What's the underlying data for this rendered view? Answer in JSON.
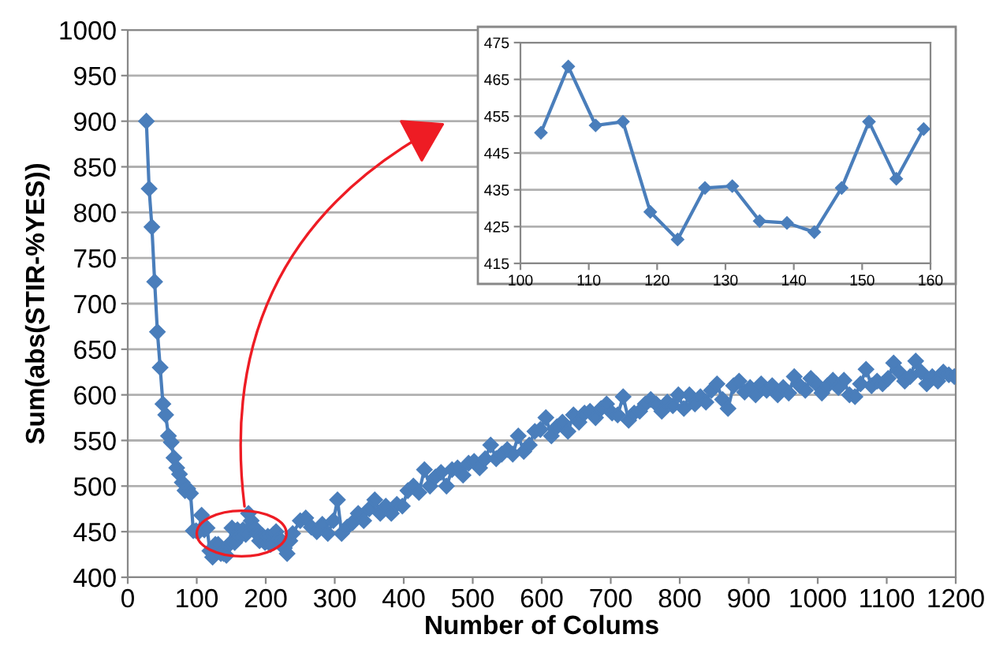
{
  "chart_data": [
    {
      "type": "line",
      "xlabel": "Number of Colums",
      "ylabel": "Sum(abs(STIR-%YES))",
      "xlim": [
        0,
        1200
      ],
      "ylim": [
        400,
        1000
      ],
      "xticks": [
        0,
        100,
        200,
        300,
        400,
        500,
        600,
        700,
        800,
        900,
        1000,
        1100,
        1200
      ],
      "yticks": [
        400,
        450,
        500,
        550,
        600,
        650,
        700,
        750,
        800,
        850,
        900,
        950,
        1000
      ],
      "grid": "y",
      "marker": "diamond",
      "line_style": "solid",
      "legend": false,
      "series": [
        {
          "color": "#4a7ebb",
          "x": [
            27,
            31,
            35,
            39,
            43,
            47,
            51,
            55,
            59,
            63,
            67,
            71,
            75,
            79,
            83,
            87,
            91,
            95,
            99,
            103,
            107,
            111,
            115,
            119,
            123,
            127,
            131,
            135,
            139,
            143,
            147,
            151,
            155,
            159,
            163,
            167,
            171,
            175,
            179,
            183,
            187,
            191,
            195,
            199,
            203,
            207,
            211,
            215,
            219,
            223,
            227,
            231,
            235,
            239,
            250,
            258,
            266,
            274,
            282,
            290,
            298,
            304,
            310,
            318,
            326,
            334,
            342,
            350,
            358,
            366,
            374,
            382,
            390,
            398,
            406,
            414,
            422,
            430,
            438,
            446,
            454,
            462,
            470,
            478,
            486,
            494,
            502,
            510,
            518,
            526,
            534,
            542,
            550,
            558,
            566,
            574,
            582,
            590,
            598,
            606,
            614,
            622,
            630,
            638,
            646,
            654,
            662,
            670,
            678,
            686,
            694,
            702,
            710,
            718,
            726,
            734,
            742,
            750,
            758,
            766,
            774,
            782,
            790,
            798,
            806,
            814,
            822,
            830,
            838,
            846,
            854,
            862,
            870,
            878,
            886,
            894,
            902,
            910,
            918,
            926,
            934,
            942,
            950,
            958,
            966,
            974,
            982,
            990,
            998,
            1006,
            1014,
            1022,
            1030,
            1038,
            1046,
            1054,
            1062,
            1070,
            1078,
            1086,
            1094,
            1102,
            1110,
            1118,
            1126,
            1134,
            1142,
            1150,
            1158,
            1166,
            1174,
            1182,
            1190,
            1198
          ],
          "values": [
            900,
            826,
            784,
            724,
            669,
            630,
            590,
            578,
            555,
            548,
            531,
            520,
            513,
            504,
            495,
            497,
            492,
            451,
            451,
            450,
            468,
            452,
            454,
            429,
            422,
            436,
            436,
            426,
            426,
            424,
            436,
            454,
            438,
            452,
            445,
            452,
            447,
            470,
            462,
            455,
            448,
            440,
            446,
            438,
            445,
            436,
            447,
            450,
            442,
            440,
            432,
            426,
            440,
            448,
            462,
            465,
            455,
            450,
            458,
            448,
            462,
            485,
            448,
            455,
            460,
            470,
            462,
            475,
            485,
            470,
            478,
            470,
            480,
            478,
            495,
            500,
            493,
            518,
            500,
            510,
            515,
            500,
            518,
            520,
            512,
            525,
            527,
            520,
            530,
            545,
            530,
            535,
            540,
            535,
            555,
            538,
            545,
            560,
            562,
            575,
            555,
            565,
            570,
            560,
            578,
            570,
            580,
            582,
            575,
            585,
            590,
            580,
            578,
            598,
            572,
            580,
            582,
            590,
            595,
            590,
            582,
            592,
            588,
            600,
            585,
            600,
            590,
            598,
            592,
            605,
            612,
            595,
            585,
            610,
            615,
            603,
            608,
            600,
            612,
            605,
            610,
            600,
            608,
            602,
            620,
            610,
            605,
            618,
            612,
            602,
            610,
            616,
            608,
            616,
            600,
            598,
            612,
            628,
            610,
            615,
            612,
            618,
            635,
            625,
            615,
            620,
            637,
            625,
            612,
            620,
            615,
            625,
            622,
            620
          ]
        }
      ]
    },
    {
      "type": "line",
      "xlim": [
        100,
        160
      ],
      "ylim": [
        415,
        475
      ],
      "xticks": [
        100,
        110,
        120,
        130,
        140,
        150,
        160
      ],
      "yticks": [
        415,
        425,
        435,
        445,
        455,
        465,
        475
      ],
      "grid": "y",
      "marker": "diamond",
      "line_style": "solid",
      "legend": false,
      "series": [
        {
          "color": "#4a7ebb",
          "x": [
            103,
            107,
            111,
            115,
            119,
            123,
            127,
            131,
            135,
            139,
            143,
            147,
            151,
            155,
            159
          ],
          "values": [
            450.5,
            468.5,
            452.5,
            453.5,
            429,
            421.5,
            435.5,
            436,
            426.5,
            426,
            423.5,
            435.5,
            453.5,
            438,
            451.5
          ]
        }
      ]
    }
  ]
}
